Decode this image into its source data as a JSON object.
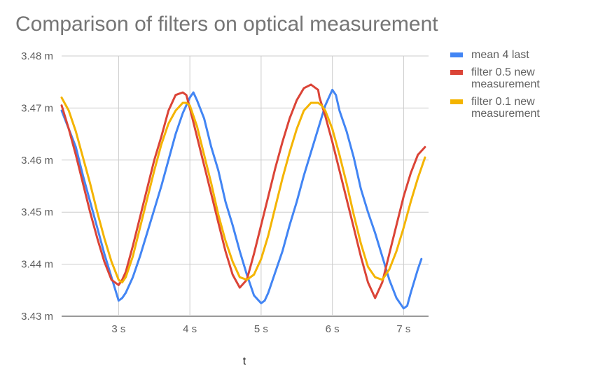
{
  "chart_data": {
    "type": "line",
    "title": "Comparison of filters on optical measurement",
    "xlabel": "t",
    "ylabel": "",
    "xlim": [
      2.2,
      7.35
    ],
    "ylim": [
      3.43,
      3.48
    ],
    "x_ticks": [
      3,
      4,
      5,
      6,
      7
    ],
    "x_tick_labels": [
      "3 s",
      "4 s",
      "5 s",
      "6 s",
      "7 s"
    ],
    "y_ticks": [
      3.43,
      3.44,
      3.45,
      3.46,
      3.47,
      3.48
    ],
    "y_tick_labels": [
      "3.43 m",
      "3.44 m",
      "3.45 m",
      "3.46 m",
      "3.47 m",
      "3.48 m"
    ],
    "grid": true,
    "legend_position": "right",
    "series": [
      {
        "name": "mean 4 last",
        "color": "#4285f4",
        "x": [
          2.2,
          2.3,
          2.4,
          2.5,
          2.6,
          2.7,
          2.8,
          2.9,
          3.0,
          3.05,
          3.1,
          3.2,
          3.3,
          3.4,
          3.5,
          3.6,
          3.7,
          3.8,
          3.9,
          4.0,
          4.05,
          4.1,
          4.2,
          4.3,
          4.4,
          4.5,
          4.6,
          4.7,
          4.8,
          4.9,
          5.0,
          5.05,
          5.1,
          5.2,
          5.3,
          5.4,
          5.5,
          5.6,
          5.7,
          5.8,
          5.9,
          6.0,
          6.05,
          6.1,
          6.2,
          6.3,
          6.4,
          6.5,
          6.6,
          6.7,
          6.8,
          6.9,
          7.0,
          7.05,
          7.1,
          7.2,
          7.25
        ],
        "y": [
          3.4695,
          3.466,
          3.4625,
          3.457,
          3.452,
          3.447,
          3.442,
          3.4375,
          3.433,
          3.4335,
          3.4345,
          3.4375,
          3.4415,
          3.446,
          3.4505,
          3.455,
          3.46,
          3.465,
          3.469,
          3.472,
          3.473,
          3.4715,
          3.468,
          3.4625,
          3.458,
          3.452,
          3.4475,
          3.4425,
          3.438,
          3.434,
          3.4325,
          3.433,
          3.4345,
          3.4385,
          3.4425,
          3.4475,
          3.452,
          3.457,
          3.4615,
          3.466,
          3.4705,
          3.4735,
          3.4725,
          3.4695,
          3.4655,
          3.4605,
          3.4545,
          3.45,
          3.446,
          3.4415,
          3.437,
          3.4335,
          3.4315,
          3.432,
          3.4345,
          3.439,
          3.441
        ]
      },
      {
        "name": "filter 0.5 new measurement",
        "color": "#db4437",
        "x": [
          2.2,
          2.3,
          2.4,
          2.5,
          2.6,
          2.7,
          2.8,
          2.9,
          3.0,
          3.05,
          3.1,
          3.2,
          3.3,
          3.4,
          3.5,
          3.6,
          3.7,
          3.8,
          3.9,
          3.95,
          4.0,
          4.1,
          4.2,
          4.3,
          4.4,
          4.5,
          4.6,
          4.7,
          4.8,
          4.85,
          4.9,
          5.0,
          5.1,
          5.2,
          5.3,
          5.4,
          5.5,
          5.6,
          5.7,
          5.8,
          5.82,
          5.9,
          6.0,
          6.1,
          6.2,
          6.3,
          6.4,
          6.5,
          6.6,
          6.7,
          6.8,
          6.9,
          7.0,
          7.1,
          7.2,
          7.3
        ],
        "y": [
          3.4705,
          3.466,
          3.461,
          3.4555,
          3.45,
          3.445,
          3.4405,
          3.437,
          3.436,
          3.437,
          3.4385,
          3.4435,
          3.449,
          3.4545,
          3.46,
          3.4645,
          3.4695,
          3.4725,
          3.473,
          3.4725,
          3.47,
          3.4645,
          3.459,
          3.4535,
          3.448,
          3.4425,
          3.438,
          3.4355,
          3.437,
          3.4395,
          3.442,
          3.4475,
          3.453,
          3.4585,
          3.4635,
          3.468,
          3.4715,
          3.4738,
          3.4745,
          3.4735,
          3.472,
          3.4685,
          3.4635,
          3.458,
          3.4525,
          3.447,
          3.4415,
          3.4365,
          3.4335,
          3.4365,
          3.442,
          3.4475,
          3.453,
          3.4575,
          3.461,
          3.4625
        ]
      },
      {
        "name": "filter 0.1 new measurement",
        "color": "#f4b400",
        "x": [
          2.2,
          2.3,
          2.4,
          2.5,
          2.6,
          2.7,
          2.8,
          2.9,
          3.0,
          3.05,
          3.1,
          3.2,
          3.3,
          3.4,
          3.5,
          3.6,
          3.7,
          3.8,
          3.9,
          3.95,
          4.0,
          4.1,
          4.2,
          4.3,
          4.4,
          4.5,
          4.6,
          4.7,
          4.8,
          4.9,
          5.0,
          5.1,
          5.2,
          5.3,
          5.4,
          5.5,
          5.6,
          5.7,
          5.8,
          5.85,
          5.9,
          6.0,
          6.1,
          6.2,
          6.3,
          6.4,
          6.5,
          6.6,
          6.7,
          6.8,
          6.9,
          7.0,
          7.1,
          7.2,
          7.3
        ],
        "y": [
          3.472,
          3.4695,
          3.4655,
          3.4605,
          3.4555,
          3.45,
          3.445,
          3.4405,
          3.437,
          3.4365,
          3.4375,
          3.4415,
          3.447,
          3.4525,
          3.458,
          3.463,
          3.467,
          3.4695,
          3.471,
          3.471,
          3.4705,
          3.4665,
          3.461,
          3.4555,
          3.4495,
          3.4445,
          3.4405,
          3.4375,
          3.437,
          3.438,
          3.441,
          3.4455,
          3.451,
          3.4565,
          3.4615,
          3.466,
          3.4695,
          3.471,
          3.471,
          3.4705,
          3.4695,
          3.466,
          3.461,
          3.4555,
          3.4495,
          3.444,
          3.4395,
          3.4375,
          3.437,
          3.439,
          3.4425,
          3.447,
          3.452,
          3.4565,
          3.4605
        ]
      }
    ]
  }
}
